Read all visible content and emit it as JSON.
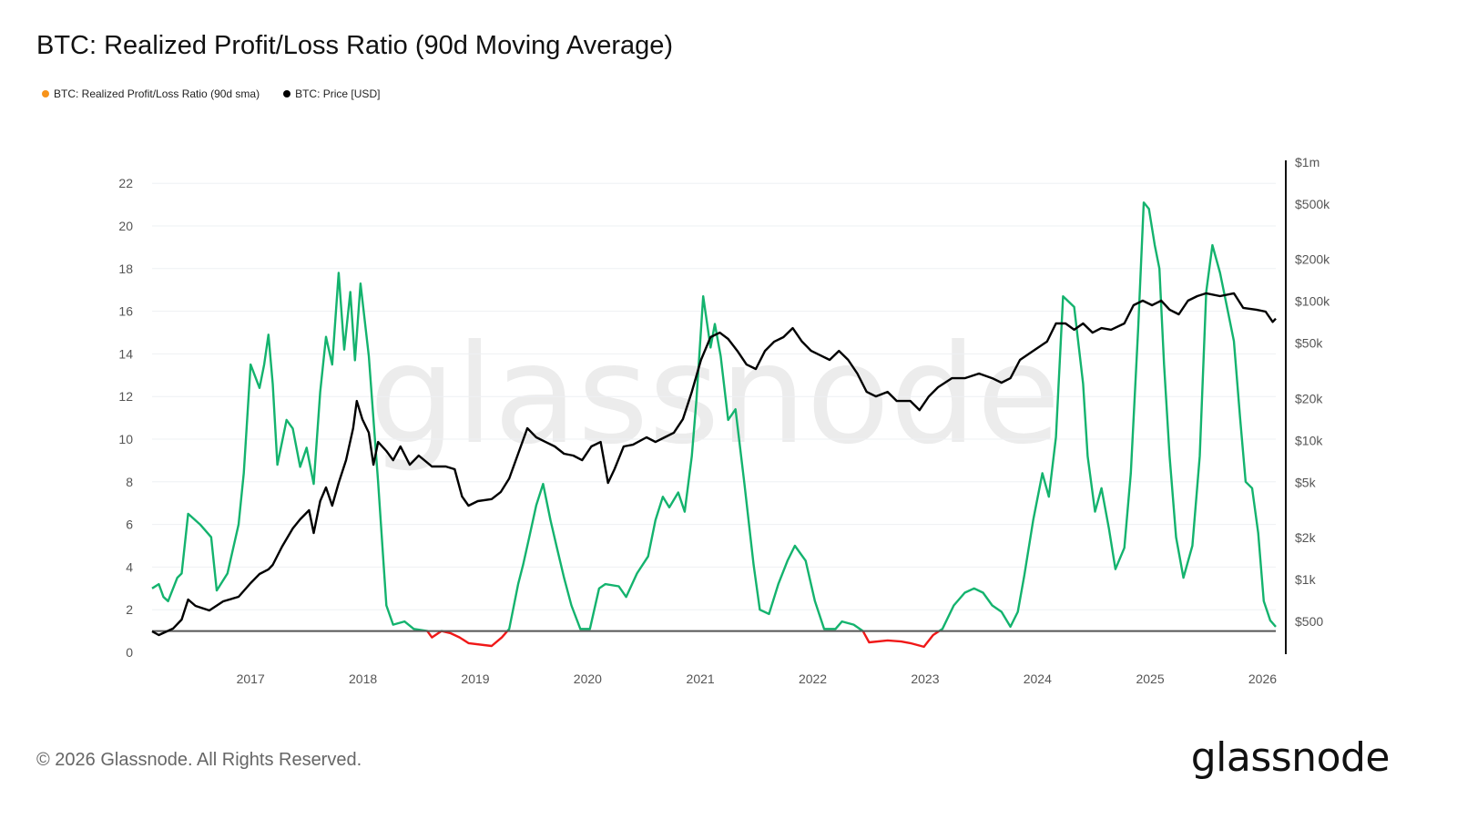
{
  "title": "BTC: Realized Profit/Loss Ratio (90d Moving Average)",
  "footer": {
    "copyright": "© 2026 Glassnode. All Rights Reserved.",
    "logo": "glassnode"
  },
  "watermark": "glassnode",
  "colors": {
    "ratio_above_1": "#14b36e",
    "ratio_below_1": "#f01818",
    "legend_ratio": "#f7931a",
    "price": "#000000",
    "baseline": "#555555"
  },
  "legend": [
    {
      "label": "BTC: Realized Profit/Loss Ratio (90d sma)",
      "color": "#f7931a"
    },
    {
      "label": "BTC: Price [USD]",
      "color": "#000000"
    }
  ],
  "chart_data": {
    "type": "line",
    "title": "BTC: Realized Profit/Loss Ratio (90d Moving Average)",
    "xlim": [
      "2016-02-16",
      "2026-02-13"
    ],
    "x_ticks": [
      "2017",
      "2018",
      "2019",
      "2020",
      "2021",
      "2022",
      "2023",
      "2024",
      "2025",
      "2026"
    ],
    "y_left": {
      "range": [
        0,
        23
      ],
      "ticks": [
        0,
        2,
        4,
        6,
        8,
        10,
        12,
        14,
        16,
        18,
        20,
        22
      ],
      "grid": true
    },
    "y_right": {
      "scale": "log",
      "range": [
        400,
        1000000
      ],
      "ticks": [
        500,
        1000,
        2000,
        5000,
        10000,
        20000,
        50000,
        100000,
        200000,
        500000,
        1000000
      ],
      "tick_labels": [
        "$500",
        "$1k",
        "$2k",
        "$5k",
        "$10k",
        "$20k",
        "$50k",
        "$100k",
        "$200k",
        "$500k",
        "$1m"
      ]
    },
    "reference_line": 1,
    "series": [
      {
        "name": "BTC: Realized Profit/Loss Ratio (90d sma)",
        "axis": "left",
        "points": [
          [
            "2016-02-16",
            3.0
          ],
          [
            "2016-03-09",
            3.2
          ],
          [
            "2016-03-24",
            2.6
          ],
          [
            "2016-04-08",
            2.4
          ],
          [
            "2016-05-08",
            3.5
          ],
          [
            "2016-05-22",
            3.7
          ],
          [
            "2016-06-12",
            6.5
          ],
          [
            "2016-07-21",
            6.0
          ],
          [
            "2016-08-26",
            5.4
          ],
          [
            "2016-09-13",
            2.9
          ],
          [
            "2016-10-18",
            3.7
          ],
          [
            "2016-11-23",
            6.0
          ],
          [
            "2016-12-10",
            8.4
          ],
          [
            "2017-01-01",
            13.5
          ],
          [
            "2017-01-30",
            12.4
          ],
          [
            "2017-02-14",
            13.5
          ],
          [
            "2017-02-28",
            14.9
          ],
          [
            "2017-03-14",
            12.6
          ],
          [
            "2017-03-29",
            8.8
          ],
          [
            "2017-04-28",
            10.9
          ],
          [
            "2017-05-18",
            10.5
          ],
          [
            "2017-06-11",
            8.7
          ],
          [
            "2017-07-02",
            9.6
          ],
          [
            "2017-07-25",
            7.9
          ],
          [
            "2017-08-15",
            12.2
          ],
          [
            "2017-09-03",
            14.8
          ],
          [
            "2017-09-23",
            13.5
          ],
          [
            "2017-10-14",
            17.8
          ],
          [
            "2017-11-01",
            14.2
          ],
          [
            "2017-11-21",
            16.9
          ],
          [
            "2017-12-06",
            13.7
          ],
          [
            "2017-12-24",
            17.3
          ],
          [
            "2018-01-20",
            13.9
          ],
          [
            "2018-02-19",
            8.0
          ],
          [
            "2018-03-18",
            2.2
          ],
          [
            "2018-04-09",
            1.3
          ],
          [
            "2018-05-16",
            1.45
          ],
          [
            "2018-06-15",
            1.1
          ],
          [
            "2018-07-29",
            1.0
          ],
          [
            "2018-08-13",
            0.7
          ],
          [
            "2018-09-13",
            1.0
          ],
          [
            "2018-10-12",
            0.9
          ],
          [
            "2018-11-11",
            0.7
          ],
          [
            "2018-12-10",
            0.43
          ],
          [
            "2019-02-23",
            0.3
          ],
          [
            "2019-03-28",
            0.7
          ],
          [
            "2019-04-21",
            1.1
          ],
          [
            "2019-05-20",
            3.2
          ],
          [
            "2019-06-05",
            4.1
          ],
          [
            "2019-06-25",
            5.4
          ],
          [
            "2019-07-18",
            6.9
          ],
          [
            "2019-08-09",
            7.9
          ],
          [
            "2019-09-02",
            6.2
          ],
          [
            "2019-09-23",
            4.9
          ],
          [
            "2019-10-16",
            3.5
          ],
          [
            "2019-11-09",
            2.2
          ],
          [
            "2019-12-08",
            1.1
          ],
          [
            "2020-01-08",
            1.1
          ],
          [
            "2020-02-07",
            3.0
          ],
          [
            "2020-02-27",
            3.2
          ],
          [
            "2020-04-11",
            3.1
          ],
          [
            "2020-05-05",
            2.6
          ],
          [
            "2020-06-09",
            3.7
          ],
          [
            "2020-07-15",
            4.5
          ],
          [
            "2020-08-08",
            6.2
          ],
          [
            "2020-09-01",
            7.3
          ],
          [
            "2020-09-22",
            6.8
          ],
          [
            "2020-10-21",
            7.5
          ],
          [
            "2020-11-11",
            6.6
          ],
          [
            "2020-12-04",
            9.2
          ],
          [
            "2020-12-19",
            11.8
          ],
          [
            "2021-01-10",
            16.7
          ],
          [
            "2021-02-03",
            14.3
          ],
          [
            "2021-02-17",
            15.4
          ],
          [
            "2021-03-08",
            13.9
          ],
          [
            "2021-04-01",
            10.9
          ],
          [
            "2021-04-25",
            11.4
          ],
          [
            "2021-05-24",
            7.9
          ],
          [
            "2021-06-23",
            4.1
          ],
          [
            "2021-07-13",
            2.0
          ],
          [
            "2021-08-12",
            1.8
          ],
          [
            "2021-09-11",
            3.2
          ],
          [
            "2021-10-11",
            4.3
          ],
          [
            "2021-11-04",
            5.0
          ],
          [
            "2021-12-09",
            4.3
          ],
          [
            "2022-01-08",
            2.4
          ],
          [
            "2022-02-07",
            1.1
          ],
          [
            "2022-03-16",
            1.1
          ],
          [
            "2022-04-06",
            1.45
          ],
          [
            "2022-05-14",
            1.3
          ],
          [
            "2022-06-13",
            1.0
          ],
          [
            "2022-07-03",
            0.47
          ],
          [
            "2022-09-01",
            0.56
          ],
          [
            "2022-10-15",
            0.51
          ],
          [
            "2022-11-14",
            0.43
          ],
          [
            "2022-12-28",
            0.26
          ],
          [
            "2023-01-27",
            0.81
          ],
          [
            "2023-02-26",
            1.1
          ],
          [
            "2023-04-04",
            2.2
          ],
          [
            "2023-05-10",
            2.8
          ],
          [
            "2023-06-09",
            3.0
          ],
          [
            "2023-07-08",
            2.8
          ],
          [
            "2023-08-07",
            2.2
          ],
          [
            "2023-09-06",
            1.9
          ],
          [
            "2023-10-05",
            1.2
          ],
          [
            "2023-10-29",
            1.9
          ],
          [
            "2023-11-19",
            3.6
          ],
          [
            "2023-12-18",
            6.2
          ],
          [
            "2024-01-17",
            8.4
          ],
          [
            "2024-02-07",
            7.3
          ],
          [
            "2024-03-01",
            10.1
          ],
          [
            "2024-03-24",
            16.7
          ],
          [
            "2024-04-29",
            16.2
          ],
          [
            "2024-05-28",
            12.6
          ],
          [
            "2024-06-12",
            9.2
          ],
          [
            "2024-07-06",
            6.6
          ],
          [
            "2024-07-27",
            7.7
          ],
          [
            "2024-08-20",
            5.8
          ],
          [
            "2024-09-10",
            3.9
          ],
          [
            "2024-10-09",
            4.9
          ],
          [
            "2024-10-30",
            8.4
          ],
          [
            "2024-11-23",
            15.2
          ],
          [
            "2024-12-11",
            21.1
          ],
          [
            "2024-12-28",
            20.8
          ],
          [
            "2025-01-16",
            19.1
          ],
          [
            "2025-01-31",
            18.0
          ],
          [
            "2025-02-15",
            13.5
          ],
          [
            "2025-03-05",
            9.2
          ],
          [
            "2025-03-26",
            5.4
          ],
          [
            "2025-04-19",
            3.5
          ],
          [
            "2025-05-18",
            5.0
          ],
          [
            "2025-06-11",
            9.2
          ],
          [
            "2025-07-02",
            16.9
          ],
          [
            "2025-07-22",
            19.1
          ],
          [
            "2025-08-16",
            17.8
          ],
          [
            "2025-09-09",
            16.1
          ],
          [
            "2025-09-30",
            14.6
          ],
          [
            "2025-10-20",
            11.0
          ],
          [
            "2025-11-07",
            8.0
          ],
          [
            "2025-11-28",
            7.7
          ],
          [
            "2025-12-18",
            5.6
          ],
          [
            "2026-01-05",
            2.4
          ],
          [
            "2026-01-26",
            1.5
          ],
          [
            "2026-02-13",
            1.2
          ]
        ]
      },
      {
        "name": "BTC: Price [USD]",
        "axis": "right",
        "points": [
          [
            "2016-02-16",
            424
          ],
          [
            "2016-03-09",
            399
          ],
          [
            "2016-04-24",
            444
          ],
          [
            "2016-05-22",
            515
          ],
          [
            "2016-06-12",
            718
          ],
          [
            "2016-07-06",
            646
          ],
          [
            "2016-08-20",
            599
          ],
          [
            "2016-10-04",
            697
          ],
          [
            "2016-11-23",
            751
          ],
          [
            "2017-01-01",
            942
          ],
          [
            "2017-01-30",
            1095
          ],
          [
            "2017-02-28",
            1182
          ],
          [
            "2017-03-14",
            1273
          ],
          [
            "2017-04-13",
            1722
          ],
          [
            "2017-05-18",
            2329
          ],
          [
            "2017-06-11",
            2706
          ],
          [
            "2017-07-10",
            3147
          ],
          [
            "2017-07-25",
            2158
          ],
          [
            "2017-08-15",
            3659
          ],
          [
            "2017-09-03",
            4588
          ],
          [
            "2017-09-23",
            3394
          ],
          [
            "2017-10-14",
            4946
          ],
          [
            "2017-11-07",
            7206
          ],
          [
            "2017-11-30",
            12220
          ],
          [
            "2017-12-12",
            19200
          ],
          [
            "2017-12-30",
            14200
          ],
          [
            "2018-01-20",
            11350
          ],
          [
            "2018-02-04",
            6680
          ],
          [
            "2018-02-19",
            9740
          ],
          [
            "2018-03-18",
            8390
          ],
          [
            "2018-04-09",
            7206
          ],
          [
            "2018-05-03",
            9040
          ],
          [
            "2018-06-02",
            6680
          ],
          [
            "2018-07-01",
            7780
          ],
          [
            "2018-08-13",
            6490
          ],
          [
            "2018-09-27",
            6490
          ],
          [
            "2018-10-26",
            6200
          ],
          [
            "2018-11-19",
            3950
          ],
          [
            "2018-12-10",
            3394
          ],
          [
            "2019-01-09",
            3659
          ],
          [
            "2019-02-23",
            3780
          ],
          [
            "2019-03-25",
            4260
          ],
          [
            "2019-04-21",
            5330
          ],
          [
            "2019-05-20",
            8010
          ],
          [
            "2019-06-19",
            12220
          ],
          [
            "2019-07-18",
            10520
          ],
          [
            "2019-08-17",
            9740
          ],
          [
            "2019-09-16",
            9040
          ],
          [
            "2019-10-16",
            8010
          ],
          [
            "2019-11-15",
            7780
          ],
          [
            "2019-12-14",
            7206
          ],
          [
            "2020-01-13",
            9040
          ],
          [
            "2020-02-12",
            9740
          ],
          [
            "2020-03-07",
            4946
          ],
          [
            "2020-03-28",
            6200
          ],
          [
            "2020-04-27",
            9040
          ],
          [
            "2020-05-27",
            9310
          ],
          [
            "2020-07-10",
            10520
          ],
          [
            "2020-08-08",
            9740
          ],
          [
            "2020-09-07",
            10520
          ],
          [
            "2020-10-07",
            11350
          ],
          [
            "2020-11-05",
            14200
          ],
          [
            "2020-12-04",
            22300
          ],
          [
            "2021-01-03",
            37900
          ],
          [
            "2021-02-03",
            55200
          ],
          [
            "2021-03-05",
            59500
          ],
          [
            "2021-04-01",
            53600
          ],
          [
            "2021-05-01",
            44000
          ],
          [
            "2021-05-31",
            35100
          ],
          [
            "2021-06-30",
            32600
          ],
          [
            "2021-07-30",
            44000
          ],
          [
            "2021-08-29",
            51300
          ],
          [
            "2021-09-28",
            55200
          ],
          [
            "2021-10-28",
            64100
          ],
          [
            "2021-11-27",
            51300
          ],
          [
            "2021-12-27",
            44000
          ],
          [
            "2022-01-26",
            40800
          ],
          [
            "2022-02-25",
            37900
          ],
          [
            "2022-03-27",
            44000
          ],
          [
            "2022-04-26",
            37900
          ],
          [
            "2022-05-26",
            30200
          ],
          [
            "2022-06-25",
            22300
          ],
          [
            "2022-07-25",
            20700
          ],
          [
            "2022-09-01",
            22300
          ],
          [
            "2022-10-01",
            19200
          ],
          [
            "2022-11-14",
            19200
          ],
          [
            "2022-12-14",
            16500
          ],
          [
            "2023-01-13",
            20700
          ],
          [
            "2023-02-12",
            24100
          ],
          [
            "2023-03-29",
            28000
          ],
          [
            "2023-05-10",
            28000
          ],
          [
            "2023-06-25",
            30200
          ],
          [
            "2023-08-07",
            28000
          ],
          [
            "2023-09-06",
            26000
          ],
          [
            "2023-10-05",
            28000
          ],
          [
            "2023-11-05",
            37900
          ],
          [
            "2023-12-18",
            44000
          ],
          [
            "2024-02-01",
            51300
          ],
          [
            "2024-03-01",
            69200
          ],
          [
            "2024-04-01",
            69200
          ],
          [
            "2024-04-29",
            62400
          ],
          [
            "2024-05-28",
            69200
          ],
          [
            "2024-06-28",
            59500
          ],
          [
            "2024-07-27",
            64100
          ],
          [
            "2024-08-27",
            62400
          ],
          [
            "2024-10-09",
            69200
          ],
          [
            "2024-11-08",
            93600
          ],
          [
            "2024-12-08",
            100900
          ],
          [
            "2025-01-07",
            93600
          ],
          [
            "2025-02-06",
            100900
          ],
          [
            "2025-03-05",
            86900
          ],
          [
            "2025-04-04",
            80500
          ],
          [
            "2025-05-04",
            100900
          ],
          [
            "2025-06-03",
            108900
          ],
          [
            "2025-07-02",
            114000
          ],
          [
            "2025-08-16",
            108900
          ],
          [
            "2025-09-30",
            114000
          ],
          [
            "2025-10-30",
            89600
          ],
          [
            "2025-12-12",
            86900
          ],
          [
            "2026-01-11",
            84300
          ],
          [
            "2026-02-03",
            71000
          ],
          [
            "2026-02-13",
            75000
          ]
        ]
      }
    ]
  }
}
